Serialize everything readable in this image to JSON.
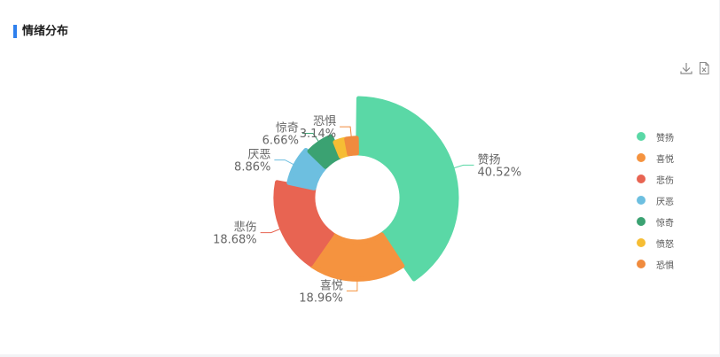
{
  "panel": {
    "title": "情绪分布",
    "accent_color": "#2f80ed",
    "tools": [
      {
        "name": "download-icon"
      },
      {
        "name": "export-excel-icon"
      }
    ]
  },
  "chart_data": {
    "type": "pie",
    "variant": "donut",
    "title": "情绪分布",
    "legend_position": "right",
    "slices": [
      {
        "label": "赞扬",
        "value": 40.52,
        "value_text": "40.52%",
        "color": "#5ad8a6"
      },
      {
        "label": "喜悦",
        "value": 18.96,
        "value_text": "18.96%",
        "color": "#f5933f"
      },
      {
        "label": "悲伤",
        "value": 18.68,
        "value_text": "18.68%",
        "color": "#e86452"
      },
      {
        "label": "厌恶",
        "value": 8.86,
        "value_text": "8.86%",
        "color": "#6dbfe0"
      },
      {
        "label": "惊奇",
        "value": 6.66,
        "value_text": "6.66%",
        "color": "#3ba272"
      },
      {
        "label": "愤怒",
        "value": 3.14,
        "value_text": "",
        "color": "#f6bd34"
      },
      {
        "label": "恐惧",
        "value": 3.14,
        "value_text": "3.14%",
        "color": "#f08b3e"
      }
    ]
  }
}
